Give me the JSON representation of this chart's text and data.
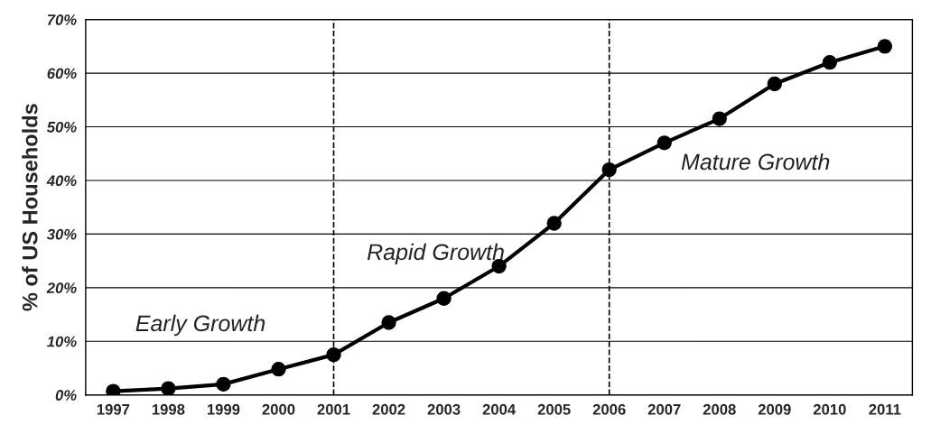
{
  "chart_data": {
    "type": "line",
    "ylabel": "% of US Households",
    "categories": [
      "1997",
      "1998",
      "1999",
      "2000",
      "2001",
      "2002",
      "2003",
      "2004",
      "2005",
      "2006",
      "2007",
      "2008",
      "2009",
      "2010",
      "2011"
    ],
    "series": [
      {
        "color": "#000000",
        "values": [
          0.7,
          1.2,
          2.0,
          4.8,
          7.5,
          13.5,
          18,
          24,
          32,
          42,
          47,
          51.5,
          58,
          62,
          65
        ]
      }
    ],
    "ylim": [
      0,
      70
    ],
    "yticks": [
      {
        "value": 0,
        "label": "0%"
      },
      {
        "value": 10,
        "label": "10%"
      },
      {
        "value": 20,
        "label": "20%"
      },
      {
        "value": 30,
        "label": "30%"
      },
      {
        "value": 40,
        "label": "40%"
      },
      {
        "value": 50,
        "label": "50%"
      },
      {
        "value": 60,
        "label": "60%"
      },
      {
        "value": 70,
        "label": "70%"
      }
    ],
    "grid": "y",
    "marker": "circle",
    "line_style": "solid",
    "ref_lines": [
      {
        "axis": "x",
        "value": "2001",
        "color": "#000000",
        "line_style": "dashed"
      },
      {
        "axis": "x",
        "value": "2006",
        "color": "#000000",
        "line_style": "dashed"
      }
    ],
    "annotations": [
      "Early Growth",
      "Rapid Growth",
      "Mature Growth"
    ]
  }
}
